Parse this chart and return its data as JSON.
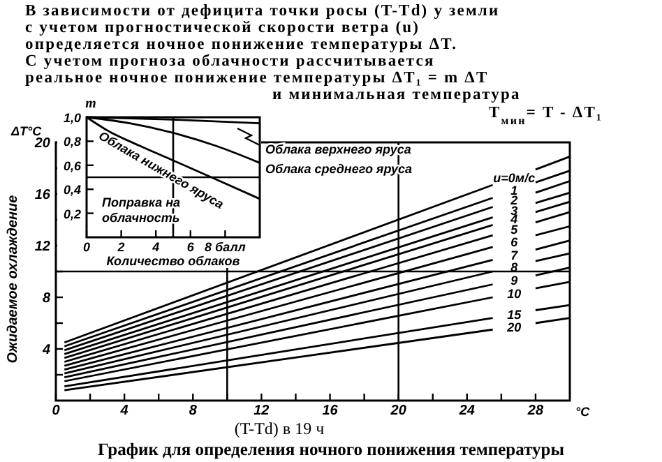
{
  "chart_data": [
    {
      "type": "line",
      "title": "График для определения ночного понижения температуры",
      "annotations": [
        "В зависимости от дефицита точки росы (T-Td) у земли",
        "с учетом прогностической скорости ветра (u)",
        "определяется ночное понижение температуры ΔT.",
        "С учетом прогноза облачности рассчитывается",
        "реальное ночное понижение температуры ΔT₁ = m ΔT",
        "и минимальная температура",
        "T$_{мин}$= T - ΔT₁",
        "ΔT°C",
        "°C"
      ],
      "xlabel": "(T-Td) в 19 ч",
      "ylabel": "Ожидаемое охлаждение",
      "x": [
        0.5,
        25.5,
        26.75,
        28,
        30
      ],
      "series": [
        {
          "name": "u=0м/с",
          "color": "#000000",
          "values": [
            4.5,
            16.7,
            null,
            17.9,
            18.9
          ]
        },
        {
          "name": "1",
          "color": "#000000",
          "values": [
            4.2,
            15.7,
            null,
            16.9,
            17.8
          ]
        },
        {
          "name": "2",
          "color": "#000000",
          "values": [
            3.9,
            15.0,
            null,
            16.1,
            17.0
          ]
        },
        {
          "name": "3",
          "color": "#000000",
          "values": [
            3.6,
            14.2,
            null,
            15.3,
            16.1
          ]
        },
        {
          "name": "4",
          "color": "#000000",
          "values": [
            3.3,
            13.6,
            null,
            14.6,
            15.4
          ]
        },
        {
          "name": "5",
          "color": "#000000",
          "values": [
            3.0,
            12.8,
            null,
            13.8,
            14.6
          ]
        },
        {
          "name": "6",
          "color": "#000000",
          "values": [
            2.7,
            11.9,
            null,
            12.8,
            13.5
          ]
        },
        {
          "name": "7",
          "color": "#000000",
          "values": [
            2.4,
            10.9,
            null,
            11.7,
            12.4
          ]
        },
        {
          "name": "8",
          "color": "#000000",
          "values": [
            2.1,
            10.0,
            null,
            10.8,
            11.4
          ]
        },
        {
          "name": "9",
          "color": "#000000",
          "values": [
            1.8,
            9.0,
            null,
            9.7,
            10.3
          ]
        },
        {
          "name": "10",
          "color": "#000000",
          "values": [
            1.5,
            8.0,
            null,
            8.7,
            9.2
          ]
        },
        {
          "name": "15",
          "color": "#000000",
          "values": [
            1.1,
            6.4,
            null,
            7.0,
            7.4
          ]
        },
        {
          "name": "20",
          "color": "#000000",
          "values": [
            0.8,
            5.5,
            null,
            6.0,
            6.4
          ]
        }
      ],
      "xlim": [
        0,
        30
      ],
      "xticks": [
        0,
        {
          "value": 2,
          "label": null
        },
        4,
        {
          "value": 6,
          "label": null
        },
        8,
        {
          "value": 10,
          "label": null
        },
        12,
        {
          "value": 14,
          "label": null
        },
        16,
        {
          "value": 18,
          "label": null
        },
        20,
        {
          "value": 22,
          "label": null
        },
        24,
        {
          "value": 26,
          "label": null
        },
        28
      ],
      "ylim": [
        0,
        20
      ],
      "yticks": [
        {
          "value": 2,
          "label": null
        },
        4,
        {
          "value": 6,
          "label": null
        },
        8,
        {
          "value": 10,
          "label": null
        },
        12,
        {
          "value": 14,
          "label": null
        },
        16,
        {
          "value": 18,
          "label": null
        },
        20
      ],
      "ref_lines": [
        {
          "axis": "x",
          "value": 10
        },
        {
          "axis": "x",
          "value": 20
        },
        {
          "axis": "y",
          "value": 10
        }
      ],
      "grid": false,
      "legend": false,
      "marker": "none",
      "line_style": "solid"
    },
    {
      "type": "line",
      "xlabel": "Количество облаков",
      "ylabel": "m",
      "annotations": [
        "Поправка на облачность"
      ],
      "series": [
        {
          "name": "Облака верхнего яруса",
          "color": "#000000",
          "x": [
            0,
            5,
            10
          ],
          "values": [
            1.0,
            0.98,
            0.95
          ]
        },
        {
          "name": "Облака среднего яруса",
          "color": "#000000",
          "x": [
            0,
            2.5,
            5,
            7.5,
            10
          ],
          "values": [
            1.0,
            0.95,
            0.87,
            0.76,
            0.62
          ]
        },
        {
          "name": "Облака нижнего яруса",
          "color": "#000000",
          "x": [
            0,
            1.2,
            3.1,
            5,
            7.2,
            10
          ],
          "values": [
            1.0,
            0.89,
            0.76,
            0.64,
            0.5,
            0.32
          ]
        }
      ],
      "xlim": [
        0,
        10
      ],
      "xticks": [
        0,
        2,
        4,
        6,
        {
          "value": 8,
          "label": "8 балл"
        }
      ],
      "ylim": [
        0,
        1.0
      ],
      "yticks": [
        {
          "value": 0.2,
          "label": "0,2"
        },
        {
          "value": 0.4,
          "label": "0,4"
        },
        {
          "value": 0.6,
          "label": "0,6"
        },
        {
          "value": 0.8,
          "label": "0,8"
        },
        {
          "value": 1.0,
          "label": "1,0"
        }
      ],
      "ref_lines": [
        {
          "axis": "x",
          "value": 5
        },
        {
          "axis": "y",
          "value": 0.5
        }
      ],
      "grid": false,
      "legend": false,
      "marker": "none",
      "line_style": "solid"
    }
  ]
}
